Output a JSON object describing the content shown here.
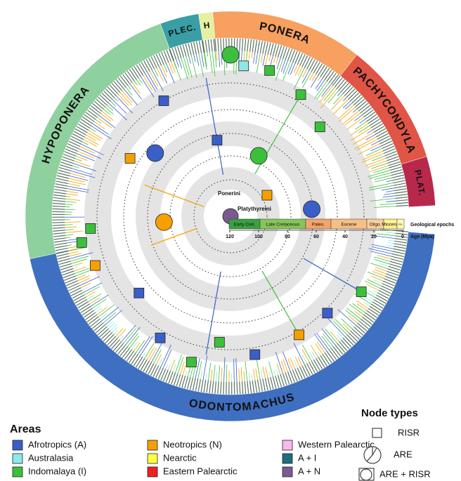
{
  "figure": {
    "clades": [
      {
        "name": "PLAT.",
        "color": "#b8284a"
      },
      {
        "name": "PACHYCONDYLA",
        "color": "#e05545"
      },
      {
        "name": "PONERA",
        "color": "#f7a060"
      },
      {
        "name": "H",
        "color": "#e5f0a0"
      },
      {
        "name": "PLEC.",
        "color": "#3a9ea5"
      },
      {
        "name": "HYPOPONERA",
        "color": "#8fd19e"
      },
      {
        "name": "ODONTOMACHUS",
        "color": "#3f6fc0"
      }
    ],
    "center_labels": {
      "ponerini": "Ponerini",
      "platythyreini": "Platythyreini"
    },
    "timescale": {
      "epochs": [
        "Early Cret.",
        "Late Cretaceous",
        "Paleo.",
        "Eocene",
        "Oligo.",
        "Miocene",
        "Pli."
      ],
      "epochs_label": "Geological epochs",
      "age_label": "Age (Mya)",
      "ticks": [
        120,
        100,
        80,
        60,
        40,
        20,
        0
      ]
    },
    "legend": {
      "title": "Areas",
      "items": [
        {
          "label": "Afrotropics (A)",
          "color": "#3a5fc8"
        },
        {
          "label": "Australasia",
          "color": "#8ee8e8"
        },
        {
          "label": "Indomalaya (I)",
          "color": "#3cc03c"
        },
        {
          "label": "Neotropics (N)",
          "color": "#f5a000"
        },
        {
          "label": "Nearctic",
          "color": "#ffff40"
        },
        {
          "label": "Eastern Palearctic",
          "color": "#ee2020"
        },
        {
          "label": "Western Palearctic",
          "color": "#f8b8f0"
        },
        {
          "label": "A + I",
          "color": "#1a6e80"
        },
        {
          "label": "A + N",
          "color": "#7a5a90"
        }
      ]
    },
    "node_types": {
      "title": "Node types",
      "items": [
        "RISR",
        "ARE",
        "ARE + RISR"
      ]
    }
  }
}
